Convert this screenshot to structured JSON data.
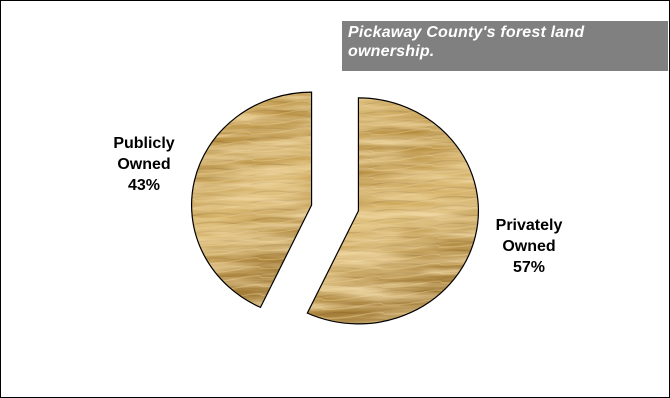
{
  "chart_data": {
    "type": "pie",
    "title": "Pickaway County's forest land ownership.",
    "slices": [
      {
        "label": "Publicly Owned",
        "value": 43,
        "value_label": "43%"
      },
      {
        "label": "Privately Owned",
        "value": 57,
        "value_label": "57%"
      }
    ],
    "exploded": true,
    "fill_texture": "wood-grain",
    "colors": {
      "title_background": "#808080",
      "title_text": "#ffffff",
      "wood_base": "#c9a24e",
      "wood_light": "#e3c482",
      "wood_dark": "#7d5a24",
      "outline": "#000000"
    }
  },
  "labels": {
    "public_line1": "Publicly",
    "public_line2": "Owned",
    "public_pct": "43%",
    "private_line1": "Privately",
    "private_line2": "Owned",
    "private_pct": "57%"
  }
}
